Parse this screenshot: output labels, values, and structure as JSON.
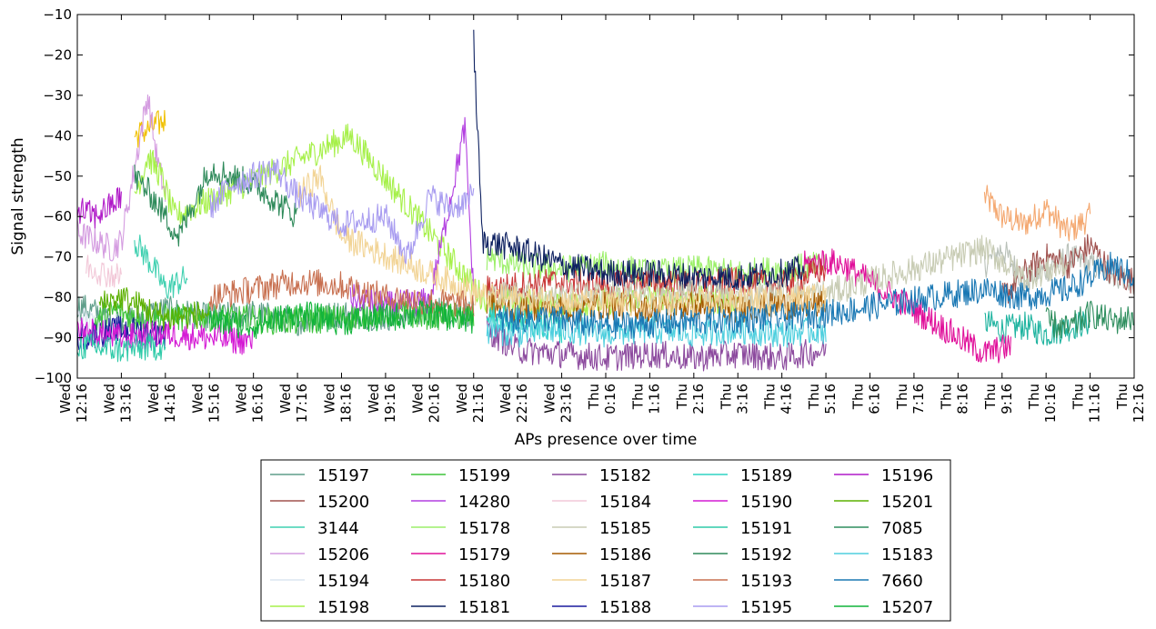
{
  "chart_data": {
    "type": "line",
    "title": "",
    "xlabel": "APs presence over time",
    "ylabel": "Signal strength",
    "ylim": [
      -100,
      -10
    ],
    "yticks": [
      -100,
      -90,
      -80,
      -70,
      -60,
      -50,
      -40,
      -30,
      -20,
      -10
    ],
    "ytick_labels": [
      "−100",
      "−90",
      "−80",
      "−70",
      "−60",
      "−50",
      "−40",
      "−30",
      "−20",
      "−10"
    ],
    "xlim": [
      "Wed 12:16",
      "Thu 12:16"
    ],
    "xtick_labels": [
      [
        "Wed",
        "12:16"
      ],
      [
        "Wed",
        "13:16"
      ],
      [
        "Wed",
        "14:16"
      ],
      [
        "Wed",
        "15:16"
      ],
      [
        "Wed",
        "16:16"
      ],
      [
        "Wed",
        "17:16"
      ],
      [
        "Wed",
        "18:16"
      ],
      [
        "Wed",
        "19:16"
      ],
      [
        "Wed",
        "20:16"
      ],
      [
        "Wed",
        "21:16"
      ],
      [
        "Wed",
        "22:16"
      ],
      [
        "Wed",
        "23:16"
      ],
      [
        "Thu",
        "0:16"
      ],
      [
        "Thu",
        "1:16"
      ],
      [
        "Thu",
        "2:16"
      ],
      [
        "Thu",
        "3:16"
      ],
      [
        "Thu",
        "4:16"
      ],
      [
        "Thu",
        "5:16"
      ],
      [
        "Thu",
        "6:16"
      ],
      [
        "Thu",
        "7:16"
      ],
      [
        "Thu",
        "8:16"
      ],
      [
        "Thu",
        "9:16"
      ],
      [
        "Thu",
        "10:16"
      ],
      [
        "Thu",
        "11:16"
      ],
      [
        "Thu",
        "12:16"
      ]
    ],
    "grid": false,
    "legend_position": "bottom-center",
    "legend_columns": 5,
    "series": [
      {
        "name": "15197",
        "color": "#5f9e8a",
        "points": [
          [
            0.0,
            -82
          ],
          [
            0.5,
            -84
          ],
          [
            1.0,
            -86
          ],
          [
            2.0,
            -83
          ],
          [
            3.0,
            -85
          ],
          [
            4.0,
            -84
          ],
          [
            5.0,
            -86
          ],
          [
            6.0,
            -84
          ],
          [
            7.0,
            -85
          ],
          [
            8.0,
            -83
          ],
          [
            9.0,
            -84
          ]
        ]
      },
      {
        "name": "15200",
        "color": "#a0524f",
        "points": [
          [
            21.0,
            -80
          ],
          [
            21.5,
            -74
          ],
          [
            22.0,
            -70
          ],
          [
            22.5,
            -72
          ],
          [
            23.0,
            -67
          ],
          [
            23.5,
            -74
          ],
          [
            24.0,
            -76
          ]
        ]
      },
      {
        "name": "3144",
        "color": "#3fd0b0",
        "points": [
          [
            1.3,
            -66
          ],
          [
            1.7,
            -72
          ],
          [
            2.0,
            -78
          ],
          [
            2.5,
            -75
          ]
        ]
      },
      {
        "name": "15206",
        "color": "#d49be0",
        "points": [
          [
            0.0,
            -64
          ],
          [
            0.4,
            -66
          ],
          [
            0.8,
            -68
          ],
          [
            1.0,
            -66
          ],
          [
            1.6,
            -30
          ],
          [
            1.8,
            -45
          ],
          [
            2.0,
            -55
          ]
        ]
      },
      {
        "name": "15194",
        "color": "#dce6f0",
        "points": [
          [
            0.0,
            -85
          ],
          [
            0.5,
            -87
          ],
          [
            1.0,
            -86
          ]
        ]
      },
      {
        "name": "15198",
        "color": "#a6f04a",
        "points": [
          [
            1.3,
            -55
          ],
          [
            1.6,
            -45
          ],
          [
            1.9,
            -50
          ],
          [
            2.2,
            -60
          ],
          [
            6.2,
            -40
          ],
          [
            9.2,
            -80
          ],
          [
            11.0,
            -82
          ],
          [
            13.0,
            -80
          ],
          [
            15.0,
            -81
          ]
        ]
      },
      {
        "name": "15199",
        "color": "#3ec43a",
        "points": [
          [
            0.4,
            -86
          ],
          [
            0.9,
            -83
          ],
          [
            1.2,
            -85
          ],
          [
            3.0,
            -85
          ],
          [
            5.0,
            -86
          ],
          [
            7.0,
            -84
          ],
          [
            9.0,
            -85
          ]
        ]
      },
      {
        "name": "14280",
        "color": "#b23ee0",
        "points": [
          [
            6.2,
            -80
          ],
          [
            7.0,
            -82
          ],
          [
            8.0,
            -81
          ],
          [
            8.8,
            -38
          ],
          [
            9.0,
            -80
          ]
        ]
      },
      {
        "name": "15178",
        "color": "#9cef6a",
        "points": [
          [
            9.3,
            -70
          ],
          [
            10.0,
            -72
          ],
          [
            11.0,
            -73
          ],
          [
            12.0,
            -72
          ],
          [
            13.0,
            -74
          ],
          [
            14.0,
            -73
          ],
          [
            15.0,
            -74
          ],
          [
            16.0,
            -73
          ],
          [
            17.0,
            -72
          ]
        ]
      },
      {
        "name": "15179",
        "color": "#e0109a",
        "points": [
          [
            16.5,
            -72
          ],
          [
            17.0,
            -71
          ],
          [
            17.4,
            -72
          ],
          [
            20.6,
            -94
          ],
          [
            21.2,
            -92
          ]
        ]
      },
      {
        "name": "15180",
        "color": "#c83636",
        "points": [
          [
            9.3,
            -78
          ],
          [
            10.0,
            -77
          ],
          [
            11.0,
            -76
          ],
          [
            12.0,
            -77
          ],
          [
            13.0,
            -76
          ],
          [
            14.0,
            -77
          ],
          [
            15.0,
            -76
          ],
          [
            16.0,
            -77
          ],
          [
            17.0,
            -73
          ]
        ]
      },
      {
        "name": "15181",
        "color": "#0d2060",
        "points": [
          [
            9.0,
            -17
          ],
          [
            9.2,
            -66
          ],
          [
            10.0,
            -68
          ],
          [
            11.0,
            -72
          ],
          [
            12.0,
            -74
          ],
          [
            13.0,
            -74
          ],
          [
            14.0,
            -75
          ],
          [
            15.0,
            -75
          ],
          [
            16.0,
            -74
          ],
          [
            16.5,
            -73
          ]
        ]
      },
      {
        "name": "15182",
        "color": "#8c4a9e",
        "points": [
          [
            9.3,
            -88
          ],
          [
            10.0,
            -93
          ],
          [
            11.0,
            -94
          ],
          [
            12.0,
            -95
          ],
          [
            13.0,
            -94
          ],
          [
            14.0,
            -95
          ],
          [
            15.0,
            -94
          ],
          [
            16.0,
            -95
          ],
          [
            17.0,
            -93
          ]
        ]
      },
      {
        "name": "15184",
        "color": "#f2c8d8",
        "points": [
          [
            0.2,
            -72
          ],
          [
            0.6,
            -74
          ],
          [
            1.0,
            -75
          ]
        ]
      },
      {
        "name": "15185",
        "color": "#c8ccb4",
        "points": [
          [
            9.3,
            -80
          ],
          [
            10.0,
            -79
          ],
          [
            11.0,
            -80
          ],
          [
            12.0,
            -79
          ],
          [
            13.0,
            -80
          ],
          [
            14.0,
            -79
          ],
          [
            15.0,
            -80
          ],
          [
            16.0,
            -79
          ],
          [
            17.0,
            -79
          ],
          [
            20.6,
            -68
          ],
          [
            21.5,
            -75
          ],
          [
            22.5,
            -72
          ]
        ]
      },
      {
        "name": "15186",
        "color": "#a65a00",
        "points": [
          [
            9.3,
            -82
          ],
          [
            10.0,
            -83
          ],
          [
            11.0,
            -83
          ],
          [
            12.0,
            -82
          ],
          [
            13.0,
            -83
          ],
          [
            14.0,
            -82
          ],
          [
            15.0,
            -83
          ],
          [
            16.0,
            -82
          ],
          [
            17.0,
            -82
          ]
        ]
      },
      {
        "name": "15187",
        "color": "#f2d496",
        "points": [
          [
            5.0,
            -55
          ],
          [
            5.5,
            -50
          ],
          [
            6.0,
            -65
          ],
          [
            9.3,
            -80
          ],
          [
            11.0,
            -81
          ],
          [
            13.0,
            -82
          ],
          [
            15.0,
            -81
          ],
          [
            17.0,
            -80
          ]
        ]
      },
      {
        "name": "15188",
        "color": "#1a1a9e",
        "points": [
          [
            0.0,
            -90
          ],
          [
            1.0,
            -88
          ],
          [
            2.0,
            -89
          ]
        ]
      },
      {
        "name": "15189",
        "color": "#2ed4c4",
        "points": [
          [
            9.3,
            -84
          ],
          [
            10.0,
            -86
          ],
          [
            11.0,
            -88
          ]
        ]
      },
      {
        "name": "15190",
        "color": "#d41ad4",
        "points": [
          [
            0.0,
            -88
          ],
          [
            1.0,
            -90
          ],
          [
            2.0,
            -89
          ],
          [
            3.0,
            -90
          ],
          [
            4.0,
            -91
          ]
        ]
      },
      {
        "name": "15191",
        "color": "#2ecaa8",
        "points": [
          [
            0.0,
            -92
          ],
          [
            1.0,
            -93
          ],
          [
            2.0,
            -92
          ]
        ]
      },
      {
        "name": "15192",
        "color": "#2e8a5a",
        "points": [
          [
            1.3,
            -50
          ],
          [
            1.7,
            -55
          ],
          [
            2.0,
            -60
          ],
          [
            2.3,
            -65
          ],
          [
            3.0,
            -48
          ],
          [
            4.0,
            -52
          ],
          [
            5.0,
            -60
          ]
        ]
      },
      {
        "name": "15193",
        "color": "#c87050",
        "points": [
          [
            3.0,
            -80
          ],
          [
            4.0,
            -78
          ],
          [
            5.0,
            -76
          ],
          [
            6.0,
            -77
          ],
          [
            7.0,
            -80
          ],
          [
            8.0,
            -81
          ],
          [
            9.0,
            -82
          ]
        ]
      },
      {
        "name": "15195",
        "color": "#a89cf0",
        "points": [
          [
            3.0,
            -58
          ],
          [
            3.5,
            -52
          ],
          [
            4.0,
            -50
          ],
          [
            4.5,
            -48
          ],
          [
            5.0,
            -55
          ],
          [
            6.0,
            -62
          ],
          [
            7.0,
            -60
          ],
          [
            7.5,
            -70
          ],
          [
            8.0,
            -55
          ],
          [
            8.5,
            -58
          ],
          [
            9.0,
            -55
          ]
        ]
      },
      {
        "name": "15196",
        "color": "#b01ac8",
        "points": [
          [
            0.0,
            -58
          ],
          [
            0.4,
            -60
          ],
          [
            0.8,
            -57
          ],
          [
            1.0,
            -55
          ]
        ]
      },
      {
        "name": "15201",
        "color": "#5cb000",
        "points": [
          [
            0.5,
            -82
          ],
          [
            1.0,
            -80
          ],
          [
            2.0,
            -85
          ],
          [
            3.0,
            -84
          ]
        ]
      },
      {
        "name": "7085",
        "color": "#2e8e5e",
        "points": [
          [
            22.0,
            -86
          ],
          [
            22.5,
            -88
          ],
          [
            23.0,
            -84
          ],
          [
            23.5,
            -86
          ],
          [
            24.0,
            -85
          ]
        ]
      },
      {
        "name": "15183",
        "color": "#4ecfde",
        "points": [
          [
            9.3,
            -88
          ],
          [
            10.0,
            -89
          ],
          [
            11.0,
            -88
          ],
          [
            12.0,
            -89
          ],
          [
            13.0,
            -88
          ],
          [
            14.0,
            -89
          ],
          [
            15.0,
            -88
          ],
          [
            16.0,
            -89
          ],
          [
            17.0,
            -88
          ]
        ]
      },
      {
        "name": "7660",
        "color": "#1a78b4",
        "points": [
          [
            9.5,
            -86
          ],
          [
            10.5,
            -85
          ],
          [
            12.0,
            -87
          ],
          [
            14.0,
            -86
          ],
          [
            16.0,
            -85
          ],
          [
            17.0,
            -84
          ],
          [
            20.6,
            -78
          ],
          [
            21.5,
            -80
          ],
          [
            22.5,
            -78
          ],
          [
            23.5,
            -72
          ],
          [
            24.0,
            -75
          ]
        ]
      },
      {
        "name": "15207",
        "color": "#10b43a",
        "points": [
          [
            3.0,
            -86
          ],
          [
            4.0,
            -87
          ],
          [
            5.0,
            -84
          ],
          [
            6.0,
            -86
          ],
          [
            7.0,
            -85
          ],
          [
            8.0,
            -84
          ],
          [
            9.0,
            -86
          ]
        ]
      }
    ],
    "extra_unlabeled_series": [
      {
        "color": "#f4a870",
        "points": [
          [
            20.6,
            -55
          ],
          [
            21.0,
            -60
          ],
          [
            21.5,
            -62
          ],
          [
            22.0,
            -58
          ],
          [
            22.5,
            -64
          ],
          [
            23.0,
            -60
          ]
        ]
      },
      {
        "color": "#b8c0b8",
        "points": [
          [
            20.6,
            -72
          ],
          [
            21.0,
            -68
          ],
          [
            21.5,
            -76
          ],
          [
            22.5,
            -70
          ],
          [
            23.5,
            -74
          ],
          [
            24.0,
            -76
          ]
        ]
      },
      {
        "color": "#20b4a0",
        "points": [
          [
            20.6,
            -86
          ],
          [
            21.0,
            -88
          ],
          [
            21.5,
            -87
          ],
          [
            22.0,
            -89
          ],
          [
            23.0,
            -86
          ]
        ]
      },
      {
        "color": "#f0c000",
        "points": [
          [
            1.3,
            -40
          ],
          [
            1.7,
            -38
          ],
          [
            2.0,
            -36
          ]
        ]
      }
    ]
  }
}
